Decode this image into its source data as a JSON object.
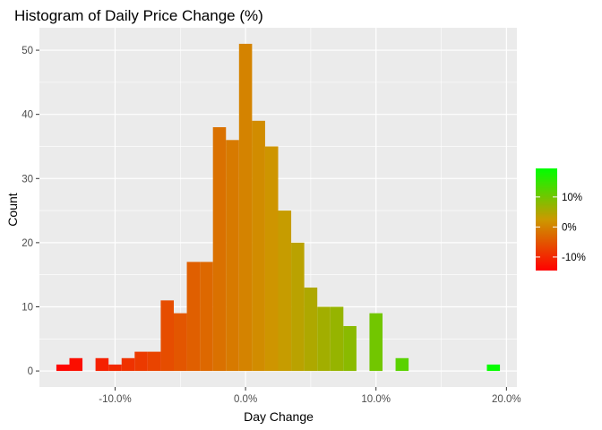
{
  "chart_data": {
    "type": "histogram",
    "title": "Histogram of Daily Price Change (%)",
    "xlabel": "Day Change",
    "ylabel": "Count",
    "xlim": [
      -15.8,
      20.8
    ],
    "ylim": [
      -2.5,
      53.5
    ],
    "x_ticks": [
      {
        "value": -10,
        "label": "-10.0%"
      },
      {
        "value": 0,
        "label": "0.0%"
      },
      {
        "value": 10,
        "label": "10.0%"
      },
      {
        "value": 20,
        "label": "20.0%"
      }
    ],
    "y_ticks": [
      {
        "value": 0,
        "label": "0"
      },
      {
        "value": 10,
        "label": "10"
      },
      {
        "value": 20,
        "label": "20"
      },
      {
        "value": 30,
        "label": "30"
      },
      {
        "value": 40,
        "label": "40"
      },
      {
        "value": 50,
        "label": "50"
      }
    ],
    "bin_width": 1,
    "bins": [
      {
        "x_min": -14.5,
        "x_max": -13.5,
        "count": 1
      },
      {
        "x_min": -13.5,
        "x_max": -12.5,
        "count": 2
      },
      {
        "x_min": -11.5,
        "x_max": -10.5,
        "count": 2
      },
      {
        "x_min": -10.5,
        "x_max": -9.5,
        "count": 1
      },
      {
        "x_min": -9.5,
        "x_max": -8.5,
        "count": 2
      },
      {
        "x_min": -8.5,
        "x_max": -7.5,
        "count": 3
      },
      {
        "x_min": -7.5,
        "x_max": -6.5,
        "count": 3
      },
      {
        "x_min": -6.5,
        "x_max": -5.5,
        "count": 11
      },
      {
        "x_min": -5.5,
        "x_max": -4.5,
        "count": 9
      },
      {
        "x_min": -4.5,
        "x_max": -3.5,
        "count": 17
      },
      {
        "x_min": -3.5,
        "x_max": -2.5,
        "count": 17
      },
      {
        "x_min": -2.5,
        "x_max": -1.5,
        "count": 38
      },
      {
        "x_min": -1.5,
        "x_max": -0.5,
        "count": 36
      },
      {
        "x_min": -0.5,
        "x_max": 0.5,
        "count": 51
      },
      {
        "x_min": 0.5,
        "x_max": 1.5,
        "count": 39
      },
      {
        "x_min": 1.5,
        "x_max": 2.5,
        "count": 35
      },
      {
        "x_min": 2.5,
        "x_max": 3.5,
        "count": 25
      },
      {
        "x_min": 3.5,
        "x_max": 4.5,
        "count": 20
      },
      {
        "x_min": 4.5,
        "x_max": 5.5,
        "count": 13
      },
      {
        "x_min": 5.5,
        "x_max": 6.5,
        "count": 10
      },
      {
        "x_min": 6.5,
        "x_max": 7.5,
        "count": 10
      },
      {
        "x_min": 7.5,
        "x_max": 8.5,
        "count": 7
      },
      {
        "x_min": 9.5,
        "x_max": 10.5,
        "count": 9
      },
      {
        "x_min": 11.5,
        "x_max": 12.5,
        "count": 2
      },
      {
        "x_min": 18.5,
        "x_max": 19.5,
        "count": 1
      }
    ],
    "grid": true,
    "panel_background": "#ebebeb",
    "fill_scale": {
      "low_color": "#ff0000",
      "mid_color": "#cc9900",
      "high_color": "#00ff00",
      "range": [
        -14.5,
        19.5
      ],
      "legend_ticks": [
        {
          "value": -10,
          "label": "-10%"
        },
        {
          "value": 0,
          "label": "0%"
        },
        {
          "value": 10,
          "label": "10%"
        }
      ]
    },
    "legend_position": "right"
  }
}
